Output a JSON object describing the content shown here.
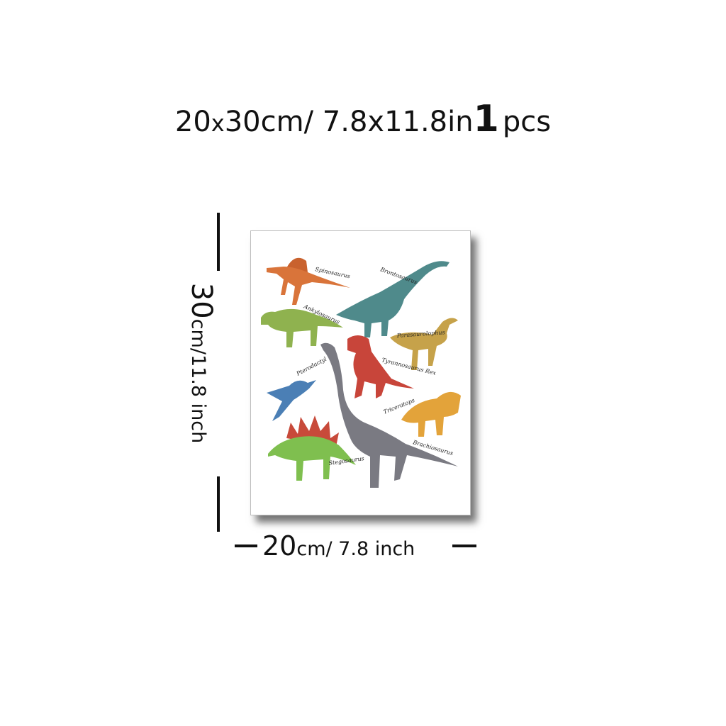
{
  "title": {
    "size_a": "20",
    "x": "x",
    "size_b": "30cm/ 7.8x11.8in",
    "quantity": "1",
    "unit": "pcs"
  },
  "height_dimension": {
    "value": "30",
    "unit": "cm/11.8 inch"
  },
  "width_dimension": {
    "value": "20",
    "unit": "cm/ 7.8 inch"
  },
  "poster": {
    "labels": [
      "Spinosaurus",
      "Brontosaurus",
      "Ankylosaurus",
      "Parasaurolophus",
      "Pterodactyl",
      "Tyrannosaurus Rex",
      "Triceratops",
      "Stegosaurus",
      "Brachiosaurus"
    ]
  },
  "colors": {
    "spinosaurus": "#d9743a",
    "brontosaurus": "#4f8a8b",
    "ankylosaurus": "#8fb24f",
    "parasaurolophus": "#c6a24a",
    "pterodactyl": "#4b7fb5",
    "trex": "#c8453a",
    "triceratops": "#e3a33a",
    "stegosaurus": "#7fbf4f",
    "brachiosaurus": "#7a7a82"
  }
}
